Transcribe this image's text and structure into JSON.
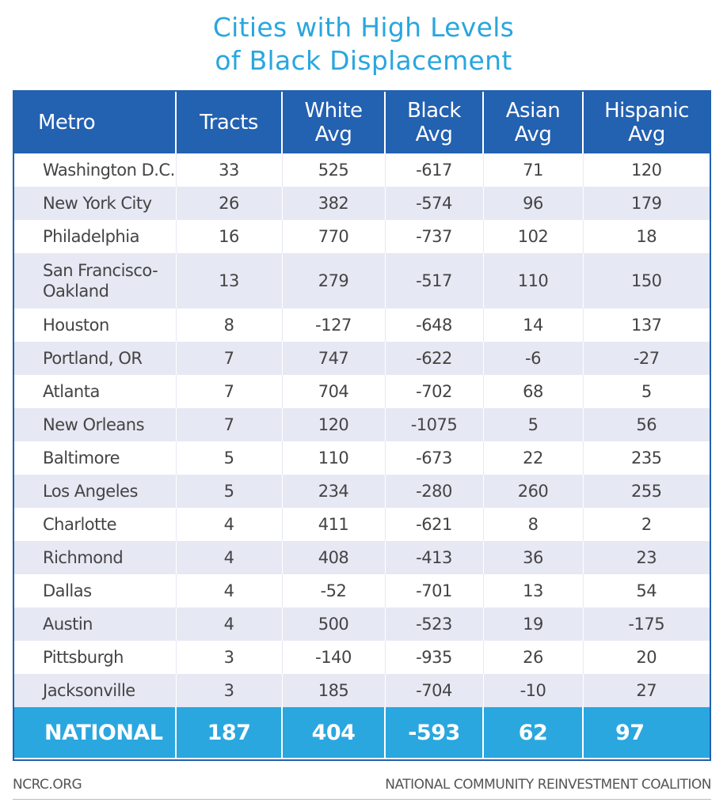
{
  "chart_data": {
    "type": "table",
    "title": [
      "Cities with High Levels",
      "of Black Displacement"
    ],
    "columns": [
      "Metro",
      "Tracts",
      "White\nAvg",
      "Black\nAvg",
      "Asian\nAvg",
      "Hispanic\nAvg"
    ],
    "rows": [
      {
        "metro": "Washington D.C.",
        "values": [
          "33",
          "525",
          "-617",
          "71",
          "120"
        ]
      },
      {
        "metro": "New York City",
        "values": [
          "26",
          "382",
          "-574",
          "96",
          "179"
        ]
      },
      {
        "metro": "Philadelphia",
        "values": [
          "16",
          "770",
          "-737",
          "102",
          "18"
        ]
      },
      {
        "metro": "San Francisco-\nOakland",
        "values": [
          "13",
          "279",
          "-517",
          "110",
          "150"
        ]
      },
      {
        "metro": "Houston",
        "values": [
          "8",
          "-127",
          "-648",
          "14",
          "137"
        ]
      },
      {
        "metro": "Portland, OR",
        "values": [
          "7",
          "747",
          "-622",
          "-6",
          "-27"
        ]
      },
      {
        "metro": "Atlanta",
        "values": [
          "7",
          "704",
          "-702",
          "68",
          "5"
        ]
      },
      {
        "metro": "New Orleans",
        "values": [
          "7",
          "120",
          "-1075",
          "5",
          "56"
        ]
      },
      {
        "metro": "Baltimore",
        "values": [
          "5",
          "110",
          "-673",
          "22",
          "235"
        ]
      },
      {
        "metro": "Los Angeles",
        "values": [
          "5",
          "234",
          "-280",
          "260",
          "255"
        ]
      },
      {
        "metro": "Charlotte",
        "values": [
          "4",
          "411",
          "-621",
          "8",
          "2"
        ]
      },
      {
        "metro": "Richmond",
        "values": [
          "4",
          "408",
          "-413",
          "36",
          "23"
        ]
      },
      {
        "metro": "Dallas",
        "values": [
          "4",
          "-52",
          "-701",
          "13",
          "54"
        ]
      },
      {
        "metro": "Austin",
        "values": [
          "4",
          "500",
          "-523",
          "19",
          "-175"
        ]
      },
      {
        "metro": "Pittsburgh",
        "values": [
          "3",
          "-140",
          "-935",
          "26",
          "20"
        ]
      },
      {
        "metro": "Jacksonville",
        "values": [
          "3",
          "185",
          "-704",
          "-10",
          "27"
        ]
      }
    ],
    "total": {
      "metro": "NATIONAL",
      "values": [
        "187",
        "404",
        "-593",
        "62",
        "97"
      ]
    }
  },
  "footer": {
    "left": "NCRC.ORG",
    "right": "NATIONAL COMMUNITY REINVESTMENT COALITION"
  },
  "colors": {
    "title": "#29a6df",
    "header_bg": "#2361b1",
    "total_bg": "#2aa7df",
    "stripe": "#e6e8f4"
  }
}
